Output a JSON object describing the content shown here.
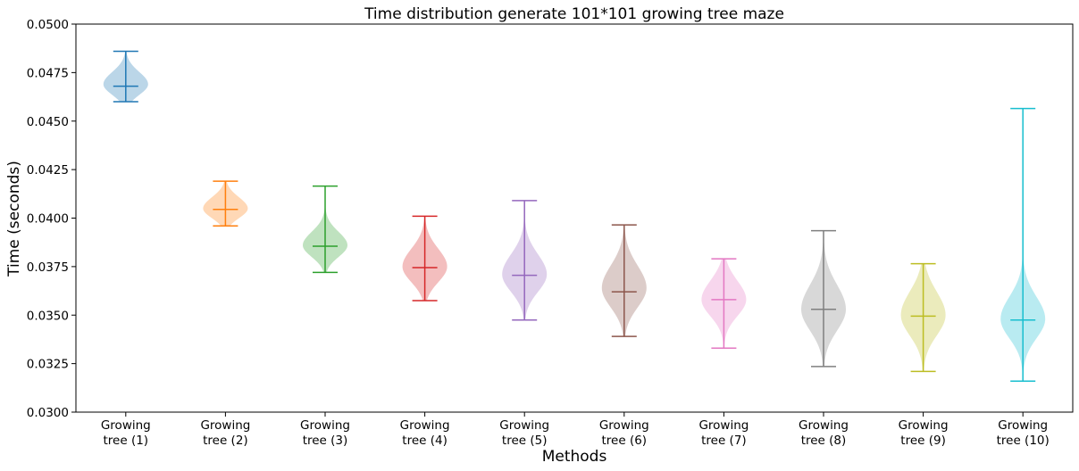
{
  "chart_data": {
    "type": "violin",
    "title": "Time distribution generate 101*101 growing tree maze",
    "xlabel": "Methods",
    "ylabel": "Time (seconds)",
    "ylim": [
      0.03,
      0.05
    ],
    "yticks": [
      "0.0300",
      "0.0325",
      "0.0350",
      "0.0375",
      "0.0400",
      "0.0425",
      "0.0450",
      "0.0475",
      "0.0500"
    ],
    "grid": false,
    "categories": [
      [
        "Growing",
        "tree (1)"
      ],
      [
        "Growing",
        "tree (2)"
      ],
      [
        "Growing",
        "tree (3)"
      ],
      [
        "Growing",
        "tree (4)"
      ],
      [
        "Growing",
        "tree (5)"
      ],
      [
        "Growing",
        "tree (6)"
      ],
      [
        "Growing",
        "tree (7)"
      ],
      [
        "Growing",
        "tree (8)"
      ],
      [
        "Growing",
        "tree (9)"
      ],
      [
        "Growing",
        "tree (10)"
      ]
    ],
    "series": [
      {
        "color": "#1f77b4",
        "min": 0.046,
        "max": 0.0486,
        "mean": 0.0468,
        "mode": 0.0469,
        "spread": 0.00055
      },
      {
        "color": "#ff7f0e",
        "min": 0.0396,
        "max": 0.0419,
        "mean": 0.04045,
        "mode": 0.0405,
        "spread": 0.0005
      },
      {
        "color": "#2ca02c",
        "min": 0.0372,
        "max": 0.04165,
        "mean": 0.03855,
        "mode": 0.0386,
        "spread": 0.0006
      },
      {
        "color": "#d62728",
        "min": 0.03575,
        "max": 0.0401,
        "mean": 0.03745,
        "mode": 0.0375,
        "spread": 0.0008
      },
      {
        "color": "#9467bd",
        "min": 0.03475,
        "max": 0.0409,
        "mean": 0.03705,
        "mode": 0.0371,
        "spread": 0.0009
      },
      {
        "color": "#8c564b",
        "min": 0.0339,
        "max": 0.03965,
        "mean": 0.0362,
        "mode": 0.0364,
        "spread": 0.001
      },
      {
        "color": "#e377c2",
        "min": 0.0333,
        "max": 0.0379,
        "mean": 0.0358,
        "mode": 0.0358,
        "spread": 0.00085
      },
      {
        "color": "#7f7f7f",
        "min": 0.03235,
        "max": 0.03935,
        "mean": 0.0353,
        "mode": 0.0353,
        "spread": 0.0011
      },
      {
        "color": "#bcbd22",
        "min": 0.0321,
        "max": 0.03765,
        "mean": 0.03495,
        "mode": 0.035,
        "spread": 0.00105
      },
      {
        "color": "#17becf",
        "min": 0.0316,
        "max": 0.04565,
        "mean": 0.03475,
        "mode": 0.0348,
        "spread": 0.001
      }
    ]
  }
}
